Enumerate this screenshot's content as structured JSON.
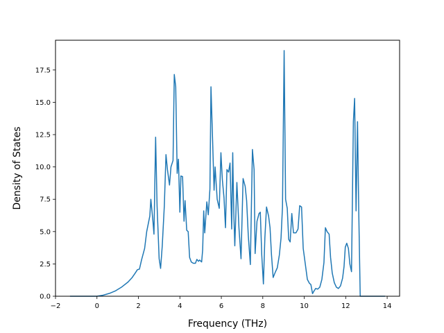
{
  "chart_data": {
    "type": "line",
    "title": "",
    "xlabel": "Frequency (THz)",
    "ylabel": "Density of States",
    "xlim": [
      -2.0,
      14.6
    ],
    "ylim": [
      0,
      19.8
    ],
    "grid": false,
    "legend": "none",
    "x_ticks": [
      -2,
      0,
      2,
      4,
      6,
      8,
      10,
      12,
      14
    ],
    "x_tick_labels": [
      "−2",
      "0",
      "2",
      "4",
      "6",
      "8",
      "10",
      "12",
      "14"
    ],
    "y_ticks": [
      0.0,
      2.5,
      5.0,
      7.5,
      10.0,
      12.5,
      15.0,
      17.5
    ],
    "y_tick_labels": [
      "0.0",
      "2.5",
      "5.0",
      "7.5",
      "10.0",
      "12.5",
      "15.0",
      "17.5"
    ],
    "series": [
      {
        "color": "#1f77b4",
        "points": [
          [
            -1.3,
            0.0
          ],
          [
            -0.5,
            0.0
          ],
          [
            0.0,
            0.0
          ],
          [
            0.3,
            0.08
          ],
          [
            0.6,
            0.22
          ],
          [
            0.9,
            0.42
          ],
          [
            1.2,
            0.72
          ],
          [
            1.5,
            1.1
          ],
          [
            1.7,
            1.45
          ],
          [
            1.85,
            1.8
          ],
          [
            1.95,
            2.05
          ],
          [
            2.05,
            2.1
          ],
          [
            2.15,
            2.8
          ],
          [
            2.3,
            3.7
          ],
          [
            2.4,
            5.0
          ],
          [
            2.55,
            6.2
          ],
          [
            2.6,
            7.5
          ],
          [
            2.7,
            5.8
          ],
          [
            2.75,
            4.8
          ],
          [
            2.83,
            12.3
          ],
          [
            2.9,
            7.0
          ],
          [
            3.0,
            2.9
          ],
          [
            3.07,
            2.15
          ],
          [
            3.15,
            3.9
          ],
          [
            3.25,
            7.0
          ],
          [
            3.33,
            10.95
          ],
          [
            3.4,
            9.8
          ],
          [
            3.5,
            8.6
          ],
          [
            3.57,
            10.0
          ],
          [
            3.67,
            10.5
          ],
          [
            3.73,
            17.15
          ],
          [
            3.8,
            16.2
          ],
          [
            3.87,
            9.5
          ],
          [
            3.93,
            10.6
          ],
          [
            4.0,
            6.5
          ],
          [
            4.05,
            9.3
          ],
          [
            4.13,
            9.25
          ],
          [
            4.2,
            5.8
          ],
          [
            4.25,
            7.4
          ],
          [
            4.33,
            5.1
          ],
          [
            4.4,
            5.0
          ],
          [
            4.47,
            3.0
          ],
          [
            4.55,
            2.65
          ],
          [
            4.65,
            2.55
          ],
          [
            4.75,
            2.55
          ],
          [
            4.82,
            2.85
          ],
          [
            4.9,
            2.7
          ],
          [
            4.95,
            2.8
          ],
          [
            5.05,
            2.65
          ],
          [
            5.1,
            3.6
          ],
          [
            5.15,
            6.6
          ],
          [
            5.2,
            4.9
          ],
          [
            5.3,
            7.3
          ],
          [
            5.37,
            6.3
          ],
          [
            5.45,
            8.3
          ],
          [
            5.5,
            16.2
          ],
          [
            5.58,
            12.0
          ],
          [
            5.65,
            8.2
          ],
          [
            5.7,
            10.0
          ],
          [
            5.8,
            7.5
          ],
          [
            5.9,
            6.8
          ],
          [
            5.98,
            11.1
          ],
          [
            6.05,
            9.0
          ],
          [
            6.13,
            7.6
          ],
          [
            6.2,
            5.3
          ],
          [
            6.27,
            9.8
          ],
          [
            6.35,
            9.6
          ],
          [
            6.42,
            10.3
          ],
          [
            6.5,
            5.2
          ],
          [
            6.55,
            11.1
          ],
          [
            6.6,
            6.5
          ],
          [
            6.65,
            3.9
          ],
          [
            6.75,
            8.8
          ],
          [
            6.85,
            5.3
          ],
          [
            6.95,
            2.9
          ],
          [
            7.05,
            9.1
          ],
          [
            7.15,
            8.5
          ],
          [
            7.22,
            7.4
          ],
          [
            7.3,
            4.7
          ],
          [
            7.4,
            2.45
          ],
          [
            7.5,
            11.35
          ],
          [
            7.58,
            9.8
          ],
          [
            7.63,
            3.3
          ],
          [
            7.72,
            5.8
          ],
          [
            7.82,
            6.4
          ],
          [
            7.88,
            6.5
          ],
          [
            7.95,
            3.2
          ],
          [
            8.03,
            0.95
          ],
          [
            8.1,
            4.5
          ],
          [
            8.18,
            6.9
          ],
          [
            8.28,
            6.2
          ],
          [
            8.35,
            5.3
          ],
          [
            8.42,
            3.2
          ],
          [
            8.5,
            1.45
          ],
          [
            8.6,
            1.85
          ],
          [
            8.7,
            2.2
          ],
          [
            8.8,
            3.2
          ],
          [
            8.88,
            4.5
          ],
          [
            8.95,
            6.9
          ],
          [
            9.03,
            19.0
          ],
          [
            9.1,
            7.5
          ],
          [
            9.18,
            6.8
          ],
          [
            9.25,
            4.4
          ],
          [
            9.32,
            4.2
          ],
          [
            9.4,
            6.4
          ],
          [
            9.48,
            4.9
          ],
          [
            9.6,
            4.9
          ],
          [
            9.7,
            5.2
          ],
          [
            9.78,
            7.0
          ],
          [
            9.87,
            6.9
          ],
          [
            9.95,
            3.7
          ],
          [
            10.05,
            2.5
          ],
          [
            10.15,
            1.3
          ],
          [
            10.25,
            1.0
          ],
          [
            10.32,
            0.9
          ],
          [
            10.4,
            0.2
          ],
          [
            10.45,
            0.35
          ],
          [
            10.55,
            0.6
          ],
          [
            10.65,
            0.55
          ],
          [
            10.75,
            0.7
          ],
          [
            10.85,
            1.3
          ],
          [
            10.95,
            2.6
          ],
          [
            11.02,
            5.3
          ],
          [
            11.1,
            5.0
          ],
          [
            11.2,
            4.8
          ],
          [
            11.27,
            3.0
          ],
          [
            11.35,
            1.8
          ],
          [
            11.45,
            1.05
          ],
          [
            11.55,
            0.7
          ],
          [
            11.65,
            0.6
          ],
          [
            11.75,
            0.8
          ],
          [
            11.85,
            1.4
          ],
          [
            11.92,
            2.3
          ],
          [
            11.98,
            3.8
          ],
          [
            12.05,
            4.1
          ],
          [
            12.13,
            3.7
          ],
          [
            12.2,
            2.5
          ],
          [
            12.28,
            1.9
          ],
          [
            12.37,
            13.5
          ],
          [
            12.43,
            15.3
          ],
          [
            12.5,
            6.6
          ],
          [
            12.57,
            13.5
          ],
          [
            12.63,
            6.5
          ],
          [
            12.7,
            0.0
          ],
          [
            13.0,
            0.0
          ],
          [
            13.5,
            0.0
          ],
          [
            13.9,
            0.0
          ]
        ]
      }
    ]
  }
}
